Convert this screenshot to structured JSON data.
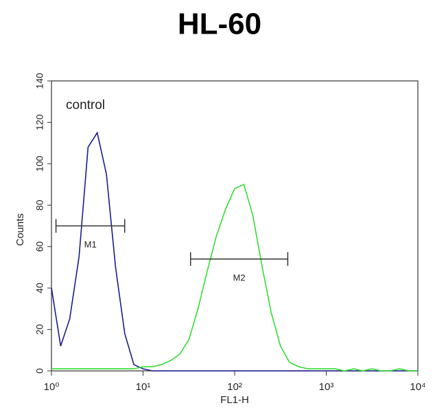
{
  "chart_data": {
    "type": "line",
    "title": "HL-60",
    "xlabel": "FL1-H",
    "ylabel": "Counts",
    "annotation": "control",
    "log_x": true,
    "x": [
      1,
      1.26,
      1.58,
      2,
      2.51,
      3.16,
      3.98,
      5.01,
      6.31,
      7.94,
      10,
      12.6,
      15.8,
      20,
      25.1,
      31.6,
      39.8,
      50.1,
      63.1,
      79.4,
      100,
      126,
      158,
      200,
      251,
      316,
      398,
      501,
      631,
      794,
      1000,
      1260,
      1580,
      2000,
      2510,
      3160,
      3980,
      5010,
      6310,
      7940,
      10000
    ],
    "series": [
      {
        "name": "control",
        "color": "#1a1a8c",
        "values": [
          40,
          12,
          25,
          55,
          108,
          115,
          95,
          50,
          18,
          3,
          1,
          0,
          0,
          0,
          0,
          0,
          0,
          0,
          0,
          0,
          0,
          0,
          0,
          0,
          0,
          0,
          0,
          0,
          0,
          0,
          0,
          0,
          0,
          0,
          0,
          0,
          0,
          0,
          0,
          0,
          0
        ]
      },
      {
        "name": "HL-60",
        "color": "#33dd33",
        "values": [
          1,
          1,
          1,
          1,
          1,
          1,
          1,
          1,
          1,
          1,
          2,
          2,
          3,
          5,
          8,
          15,
          30,
          48,
          65,
          78,
          88,
          90,
          75,
          50,
          28,
          12,
          4,
          2,
          1,
          1,
          1,
          1,
          0,
          1,
          0,
          1,
          0,
          0,
          1,
          0,
          0
        ]
      }
    ],
    "markers": [
      {
        "label": "M1",
        "range": [
          1.12,
          6.3
        ],
        "y": 70
      },
      {
        "label": "M2",
        "range": [
          33,
          380
        ],
        "y": 54
      }
    ],
    "xlim": [
      1,
      10000
    ],
    "xticks": [
      {
        "value": 1,
        "label": "10⁰"
      },
      {
        "value": 10,
        "label": "10¹"
      },
      {
        "value": 100,
        "label": "10²"
      },
      {
        "value": 1000,
        "label": "10³"
      },
      {
        "value": 10000,
        "label": "10⁴"
      }
    ],
    "ylim": [
      0,
      140
    ],
    "yticks": [
      0,
      20,
      40,
      60,
      80,
      100,
      120,
      140
    ]
  }
}
